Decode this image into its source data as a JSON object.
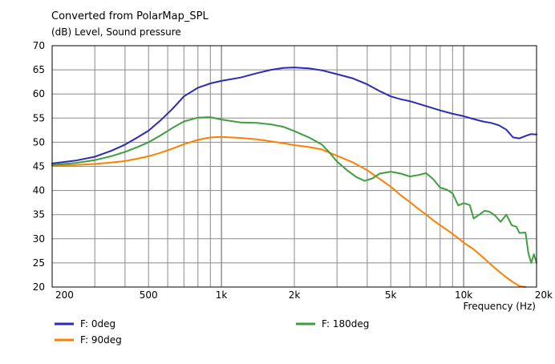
{
  "chart_data": {
    "type": "line",
    "title": "Converted from PolarMap_SPL",
    "ylabel": "(dB)  Level, Sound pressure",
    "xlabel": "Frequency  (Hz)",
    "x_scale": "log",
    "xlim": [
      200,
      20000
    ],
    "ylim": [
      20,
      70
    ],
    "grid": true,
    "legend_position": "bottom",
    "x_tick_labels": [
      {
        "value": 200,
        "label": "200"
      },
      {
        "value": 500,
        "label": "500"
      },
      {
        "value": 1000,
        "label": "1k"
      },
      {
        "value": 2000,
        "label": "2k"
      },
      {
        "value": 5000,
        "label": "5k"
      },
      {
        "value": 10000,
        "label": "10k"
      },
      {
        "value": 20000,
        "label": "20k"
      }
    ],
    "y_ticks": [
      20,
      25,
      30,
      35,
      40,
      45,
      50,
      55,
      60,
      65,
      70
    ],
    "series": [
      {
        "name": "F: 0deg",
        "color": "#2b2bb8",
        "points": [
          [
            200,
            45.6
          ],
          [
            250,
            46.2
          ],
          [
            300,
            47.0
          ],
          [
            350,
            48.2
          ],
          [
            400,
            49.5
          ],
          [
            450,
            51.0
          ],
          [
            500,
            52.4
          ],
          [
            560,
            54.5
          ],
          [
            630,
            57.0
          ],
          [
            700,
            59.5
          ],
          [
            800,
            61.3
          ],
          [
            900,
            62.2
          ],
          [
            1000,
            62.7
          ],
          [
            1200,
            63.4
          ],
          [
            1400,
            64.3
          ],
          [
            1600,
            65.0
          ],
          [
            1800,
            65.4
          ],
          [
            2000,
            65.5
          ],
          [
            2300,
            65.3
          ],
          [
            2600,
            64.9
          ],
          [
            3000,
            64.1
          ],
          [
            3500,
            63.2
          ],
          [
            4000,
            62.0
          ],
          [
            4500,
            60.6
          ],
          [
            5000,
            59.5
          ],
          [
            5500,
            58.9
          ],
          [
            6000,
            58.5
          ],
          [
            7000,
            57.5
          ],
          [
            8000,
            56.6
          ],
          [
            9000,
            55.9
          ],
          [
            10000,
            55.4
          ],
          [
            11000,
            54.8
          ],
          [
            12000,
            54.3
          ],
          [
            13000,
            54.0
          ],
          [
            14000,
            53.5
          ],
          [
            15000,
            52.6
          ],
          [
            16000,
            51.0
          ],
          [
            17000,
            50.8
          ],
          [
            18000,
            51.3
          ],
          [
            19000,
            51.7
          ],
          [
            20000,
            51.6
          ]
        ]
      },
      {
        "name": "F: 90deg",
        "color": "#ff8000",
        "points": [
          [
            200,
            45.2
          ],
          [
            250,
            45.3
          ],
          [
            300,
            45.5
          ],
          [
            350,
            45.8
          ],
          [
            400,
            46.1
          ],
          [
            450,
            46.6
          ],
          [
            500,
            47.1
          ],
          [
            560,
            47.8
          ],
          [
            630,
            48.7
          ],
          [
            700,
            49.6
          ],
          [
            800,
            50.5
          ],
          [
            900,
            51.0
          ],
          [
            1000,
            51.1
          ],
          [
            1200,
            50.9
          ],
          [
            1400,
            50.6
          ],
          [
            1600,
            50.2
          ],
          [
            1800,
            49.8
          ],
          [
            2000,
            49.4
          ],
          [
            2300,
            49.0
          ],
          [
            2600,
            48.5
          ],
          [
            3000,
            47.2
          ],
          [
            3500,
            45.8
          ],
          [
            4000,
            44.2
          ],
          [
            4500,
            42.4
          ],
          [
            5000,
            40.8
          ],
          [
            5500,
            39.0
          ],
          [
            6000,
            37.6
          ],
          [
            6500,
            36.2
          ],
          [
            7000,
            35.0
          ],
          [
            7500,
            33.8
          ],
          [
            8000,
            32.8
          ],
          [
            8500,
            31.9
          ],
          [
            9000,
            31.0
          ],
          [
            9500,
            30.1
          ],
          [
            10000,
            29.2
          ],
          [
            11000,
            27.8
          ],
          [
            12000,
            26.2
          ],
          [
            13000,
            24.6
          ],
          [
            14000,
            23.2
          ],
          [
            15000,
            22.0
          ],
          [
            16000,
            21.0
          ],
          [
            17000,
            20.2
          ],
          [
            18000,
            20.0
          ]
        ]
      },
      {
        "name": "F: 180deg",
        "color": "#3f9f3f",
        "points": [
          [
            200,
            45.3
          ],
          [
            250,
            45.7
          ],
          [
            300,
            46.3
          ],
          [
            350,
            47.1
          ],
          [
            400,
            48.0
          ],
          [
            450,
            49.0
          ],
          [
            500,
            50.0
          ],
          [
            560,
            51.4
          ],
          [
            630,
            53.0
          ],
          [
            700,
            54.3
          ],
          [
            800,
            55.1
          ],
          [
            900,
            55.2
          ],
          [
            1000,
            54.7
          ],
          [
            1200,
            54.1
          ],
          [
            1400,
            54.0
          ],
          [
            1600,
            53.7
          ],
          [
            1800,
            53.2
          ],
          [
            2000,
            52.3
          ],
          [
            2300,
            51.0
          ],
          [
            2600,
            49.5
          ],
          [
            2800,
            47.8
          ],
          [
            3000,
            46.0
          ],
          [
            3300,
            44.2
          ],
          [
            3600,
            42.8
          ],
          [
            3900,
            42.0
          ],
          [
            4200,
            42.5
          ],
          [
            4500,
            43.5
          ],
          [
            5000,
            43.9
          ],
          [
            5500,
            43.5
          ],
          [
            6000,
            42.9
          ],
          [
            6500,
            43.2
          ],
          [
            7000,
            43.6
          ],
          [
            7500,
            42.3
          ],
          [
            8000,
            40.6
          ],
          [
            8500,
            40.2
          ],
          [
            9000,
            39.4
          ],
          [
            9500,
            36.9
          ],
          [
            10000,
            37.4
          ],
          [
            10600,
            37.0
          ],
          [
            11000,
            34.2
          ],
          [
            11600,
            35.0
          ],
          [
            12200,
            35.8
          ],
          [
            12800,
            35.6
          ],
          [
            13500,
            34.8
          ],
          [
            14200,
            33.5
          ],
          [
            15000,
            35.0
          ],
          [
            15800,
            32.8
          ],
          [
            16500,
            32.5
          ],
          [
            17000,
            31.2
          ],
          [
            18000,
            31.3
          ],
          [
            18500,
            27.0
          ],
          [
            19000,
            25.0
          ],
          [
            19500,
            26.8
          ],
          [
            20000,
            25.0
          ]
        ]
      }
    ]
  }
}
